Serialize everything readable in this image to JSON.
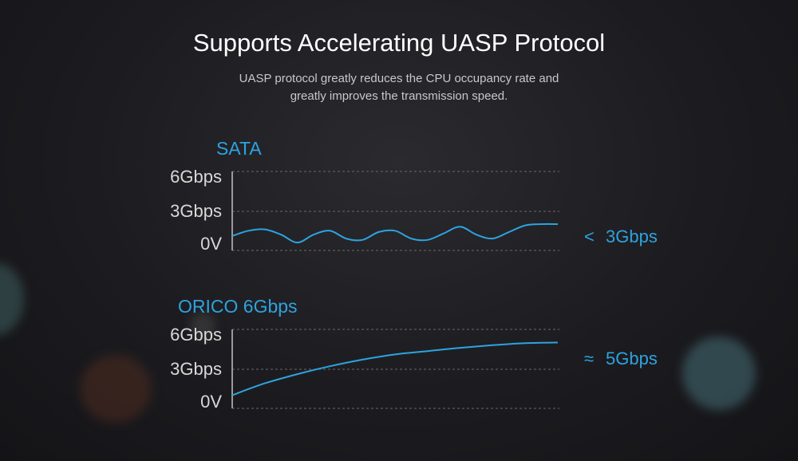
{
  "header": {
    "title": "Supports Accelerating UASP Protocol",
    "subtitle_line1": "UASP protocol greatly reduces the CPU occupancy rate and",
    "subtitle_line2": "greatly improves the transmission speed."
  },
  "colors": {
    "accent": "#2ea3df",
    "text": "#ffffff",
    "muted": "#c8c8cc",
    "grid": "#6a6a6a"
  },
  "chart_data": [
    {
      "type": "line",
      "title": "SATA",
      "yticks": [
        "6Gbps",
        "3Gbps",
        "0V"
      ],
      "ylim": [
        0,
        6
      ],
      "xlim": [
        0,
        10
      ],
      "comparison_symbol": "<",
      "comparison_value": "3Gbps",
      "x": [
        0,
        0.5,
        1,
        1.5,
        2,
        2.5,
        3,
        3.5,
        4,
        4.5,
        5,
        5.5,
        6,
        6.5,
        7,
        7.5,
        8,
        8.5,
        9,
        9.5,
        10
      ],
      "values": [
        1.1,
        1.5,
        1.6,
        1.2,
        0.6,
        1.2,
        1.5,
        0.9,
        0.8,
        1.4,
        1.5,
        0.9,
        0.8,
        1.3,
        1.8,
        1.2,
        0.9,
        1.4,
        1.9,
        2.0,
        2.0
      ]
    },
    {
      "type": "line",
      "title": "ORICO 6Gbps",
      "yticks": [
        "6Gbps",
        "3Gbps",
        "0V"
      ],
      "ylim": [
        0,
        6
      ],
      "xlim": [
        0,
        10
      ],
      "comparison_symbol": "≈",
      "comparison_value": "5Gbps",
      "x": [
        0,
        1,
        2,
        3,
        4,
        5,
        6,
        7,
        8,
        9,
        10
      ],
      "values": [
        1.0,
        1.9,
        2.6,
        3.2,
        3.7,
        4.1,
        4.35,
        4.6,
        4.8,
        4.95,
        5.0
      ]
    }
  ]
}
